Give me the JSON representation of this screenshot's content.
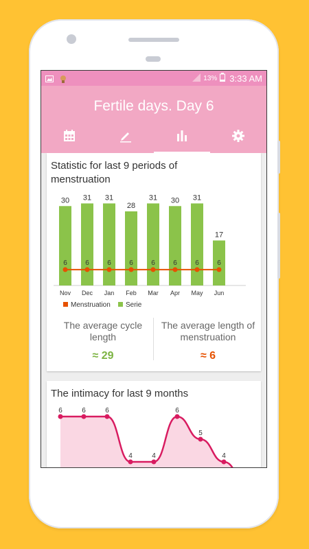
{
  "colors": {
    "background": "#FFC233",
    "status_bar": "#EE90BE",
    "app_bar": "#F2A8C4",
    "bar_green": "#8BC34A",
    "menstruation_line": "#E65100",
    "intimacy_line": "#D81B60",
    "intimacy_fill": "#FAD7E3",
    "avg_cycle": "#7CB342",
    "avg_mens": "#E65100"
  },
  "status_bar": {
    "battery": "13%",
    "time": "3:33 AM",
    "icons": [
      "image-icon",
      "app-notification-icon",
      "signal-icon",
      "battery-icon"
    ]
  },
  "app": {
    "title": "Fertile days. Day 6",
    "tabs": [
      {
        "icon": "calendar-icon",
        "active": false
      },
      {
        "icon": "pencil-icon",
        "active": false
      },
      {
        "icon": "bar-chart-icon",
        "active": true
      },
      {
        "icon": "gear-icon",
        "active": false
      }
    ]
  },
  "stats": {
    "title": "Statistic for last 9 periods of menstruation",
    "legend": [
      "Menstruation",
      "Serie"
    ],
    "avg_cycle_label": "The average cycle length",
    "avg_cycle_value": "≈ 29",
    "avg_mens_label": "The average length of menstruation",
    "avg_mens_value": "≈ 6"
  },
  "intimacy": {
    "title": "The intimacy for last 9 months"
  },
  "chart_data": [
    {
      "type": "bar",
      "categories": [
        "Nov",
        "Dec",
        "Jan",
        "Feb",
        "Mar",
        "Apr",
        "May",
        "Jun"
      ],
      "series": [
        {
          "name": "Serie",
          "type": "bar",
          "values": [
            30,
            31,
            31,
            28,
            31,
            30,
            31,
            17
          ]
        },
        {
          "name": "Menstruation",
          "type": "line",
          "values": [
            6,
            6,
            6,
            6,
            6,
            6,
            6,
            6
          ]
        }
      ],
      "ylim": [
        0,
        35
      ],
      "legend": "bottom-left"
    },
    {
      "type": "area",
      "values": [
        6,
        6,
        6,
        4,
        4,
        6,
        5,
        4,
        3
      ],
      "labels_visible": [
        6,
        6,
        6,
        4,
        4,
        6,
        5,
        4
      ],
      "ylim": [
        0,
        7
      ]
    }
  ]
}
